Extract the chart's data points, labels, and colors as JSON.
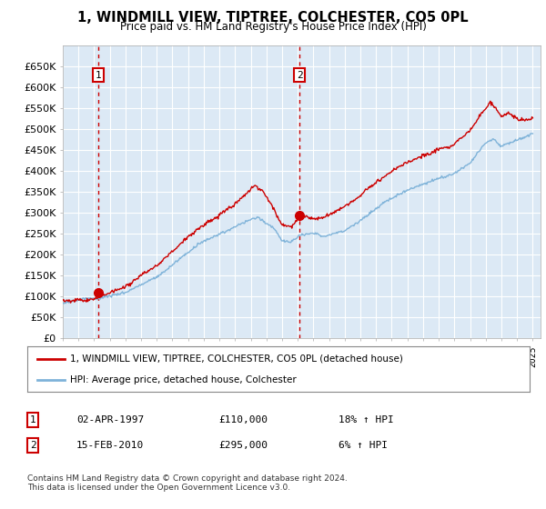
{
  "title": "1, WINDMILL VIEW, TIPTREE, COLCHESTER, CO5 0PL",
  "subtitle": "Price paid vs. HM Land Registry's House Price Index (HPI)",
  "legend_line1": "1, WINDMILL VIEW, TIPTREE, COLCHESTER, CO5 0PL (detached house)",
  "legend_line2": "HPI: Average price, detached house, Colchester",
  "transaction1_date": "02-APR-1997",
  "transaction1_price": "£110,000",
  "transaction1_hpi": "18% ↑ HPI",
  "transaction2_date": "15-FEB-2010",
  "transaction2_price": "£295,000",
  "transaction2_hpi": "6% ↑ HPI",
  "footer": "Contains HM Land Registry data © Crown copyright and database right 2024.\nThis data is licensed under the Open Government Licence v3.0.",
  "price_line_color": "#cc0000",
  "hpi_line_color": "#7fb3d9",
  "background_color": "#ffffff",
  "plot_bg_color": "#dce9f5",
  "grid_color": "#ffffff",
  "vline_color": "#cc0000",
  "ylim": [
    0,
    700000
  ],
  "yticks": [
    0,
    50000,
    100000,
    150000,
    200000,
    250000,
    300000,
    350000,
    400000,
    450000,
    500000,
    550000,
    600000,
    650000
  ],
  "t1_year": 1997.25,
  "t2_year": 2010.12,
  "t1_price": 110000,
  "t2_price": 295000
}
